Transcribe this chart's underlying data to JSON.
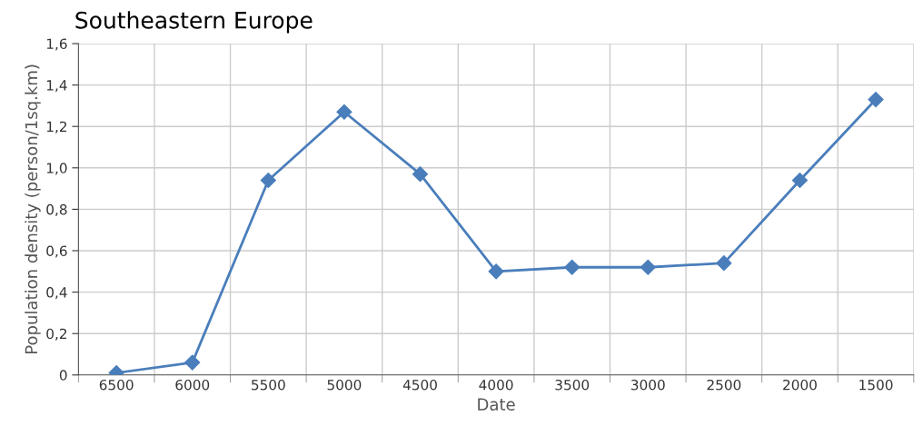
{
  "chart_data": {
    "type": "line",
    "title": "Southeastern Europe",
    "xlabel": "Date",
    "ylabel": "Population density (person/1sq.km)",
    "categories": [
      "6500",
      "6000",
      "5500",
      "5000",
      "4500",
      "4000",
      "3500",
      "3000",
      "2500",
      "2000",
      "1500"
    ],
    "series": [
      {
        "color": "#4a7ebb",
        "values": [
          0.01,
          0.06,
          0.94,
          1.27,
          0.97,
          0.5,
          0.52,
          0.52,
          0.54,
          0.94,
          1.33
        ]
      }
    ],
    "ylim": [
      0,
      1.6
    ],
    "yticks": [
      0,
      {
        "value": 0.2,
        "label": "0,2"
      },
      {
        "value": 0.4,
        "label": "0,4"
      },
      {
        "value": 0.6,
        "label": "0,6"
      },
      {
        "value": 0.8,
        "label": "0,8"
      },
      {
        "value": 1.0,
        "label": "1,0"
      },
      {
        "value": 1.2,
        "label": "1,2"
      },
      {
        "value": 1.4,
        "label": "1,4"
      },
      {
        "value": 1.6,
        "label": "1,6"
      }
    ],
    "grid": true,
    "marker": "diamond",
    "line_style": "solid"
  }
}
